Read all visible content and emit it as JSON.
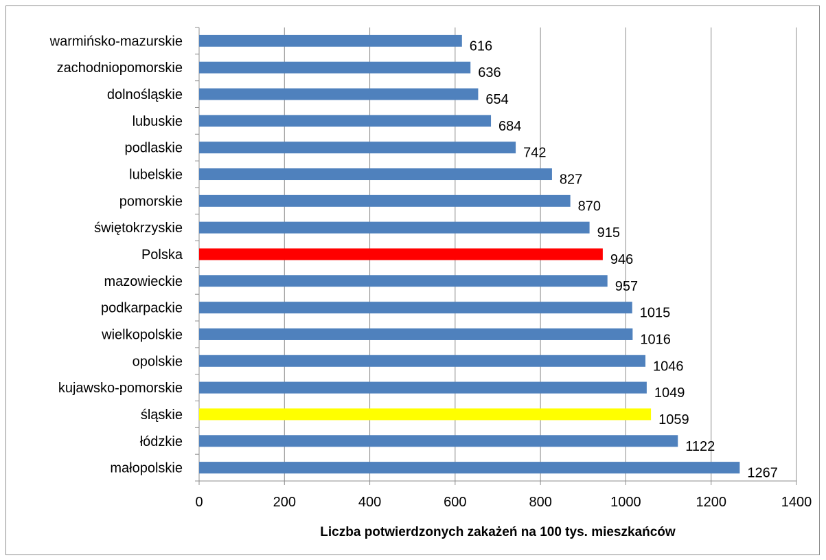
{
  "chart_data": {
    "type": "bar",
    "orientation": "horizontal",
    "title": "",
    "xlabel": "Liczba potwierdzonych zakażeń na 100 tys. mieszkańców",
    "ylabel": "",
    "xlim": [
      0,
      1400
    ],
    "xticks": [
      "0",
      "200",
      "400",
      "600",
      "800",
      "1000",
      "1200",
      "1400"
    ],
    "grid": "vertical",
    "legend": "none",
    "default_color": "#4f81bd",
    "categories": [
      "warmińsko-mazurskie",
      "zachodniopomorskie",
      "dolnośląskie",
      "lubuskie",
      "podlaskie",
      "lubelskie",
      "pomorskie",
      "świętokrzyskie",
      "Polska",
      "mazowieckie",
      "podkarpackie",
      "wielkopolskie",
      "opolskie",
      "kujawsko-pomorskie",
      "śląskie",
      "łódzkie",
      "małopolskie"
    ],
    "values": [
      616,
      636,
      654,
      684,
      742,
      827,
      870,
      915,
      946,
      957,
      1015,
      1016,
      1046,
      1049,
      1059,
      1122,
      1267
    ],
    "value_labels": [
      "616",
      "636",
      "654",
      "684",
      "742",
      "827",
      "870",
      "915",
      "946",
      "957",
      "1015",
      "1016",
      "1046",
      "1049",
      "1059",
      "1122",
      "1267"
    ],
    "colors": [
      "#4f81bd",
      "#4f81bd",
      "#4f81bd",
      "#4f81bd",
      "#4f81bd",
      "#4f81bd",
      "#4f81bd",
      "#4f81bd",
      "#ff0000",
      "#4f81bd",
      "#4f81bd",
      "#4f81bd",
      "#4f81bd",
      "#4f81bd",
      "#ffff00",
      "#4f81bd",
      "#4f81bd"
    ]
  }
}
